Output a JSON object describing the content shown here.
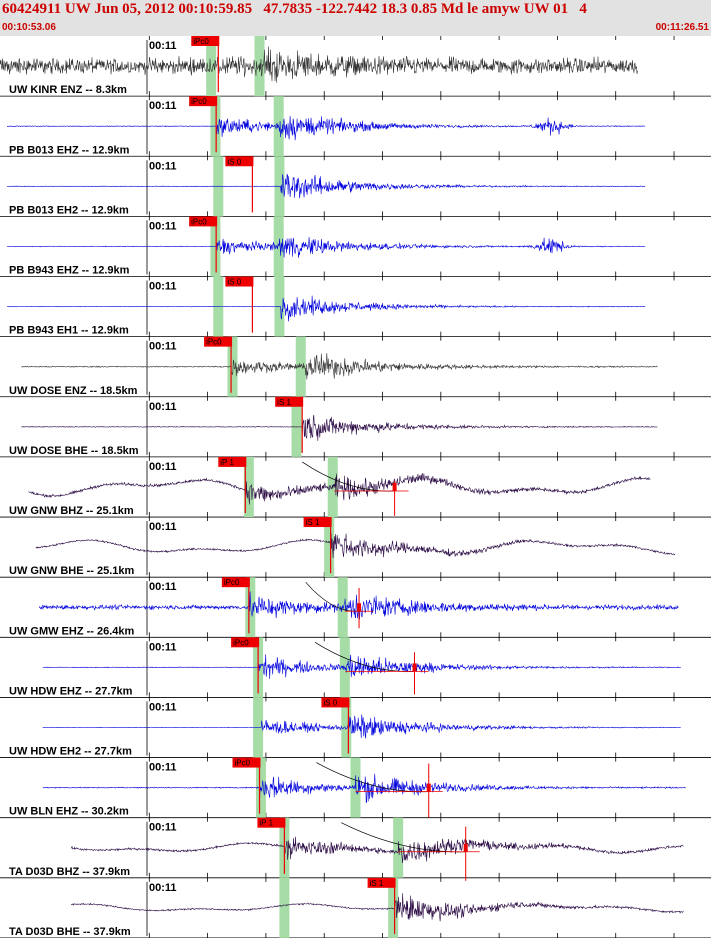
{
  "header": {
    "title": "60424911 UW Jun 05, 2012 00:10:59.85   47.7835 -122.7442 18.3 0.85 Md le amyw UW 01   4",
    "start_time": "00:10:53.06",
    "end_time": "00:11:26.51"
  },
  "colors": {
    "header_bg": "#e2e2e2",
    "header_text": "#cc0000",
    "pick": "#ee0000",
    "window": "#a6dca6",
    "trace_gray": "#333333",
    "trace_blue": "#0000dd",
    "trace_purple": "#2a0a44"
  },
  "traces": [
    {
      "label": "UW KINR ENZ -- 8.3km",
      "time_mark": "00:11",
      "color": "gray",
      "start": 0.0,
      "end": 0.897,
      "noise": 0.45,
      "amp": 0.5,
      "lp": 0,
      "p": 0.307,
      "s": 0.372,
      "windows": [
        0.297,
        0.365
      ],
      "pick_label": "iPc0",
      "pick_at": 0.307,
      "phase_sp": 0.4,
      "bursts": [],
      "amp_mark": null,
      "curve": false
    },
    {
      "label": "PB B013 EHZ -- 12.9km",
      "time_mark": "00:11",
      "color": "blue",
      "start": 0.01,
      "end": 0.908,
      "noise": 0.02,
      "amp": 0.7,
      "lp": 0,
      "p": 0.304,
      "s": 0.392,
      "windows": [
        0.303,
        0.392
      ],
      "pick_label": "iPc0",
      "pick_at": 0.304,
      "phase_sp": 0.85,
      "bursts": [
        [
          0.775,
          0.04,
          0.45
        ]
      ],
      "amp_mark": null,
      "curve": false
    },
    {
      "label": "PB B013 EH2 -- 12.9km",
      "time_mark": "00:11",
      "color": "blue",
      "start": 0.01,
      "end": 0.908,
      "noise": 0.015,
      "amp": 0.75,
      "lp": 0,
      "p": 0.395,
      "s": 0.395,
      "windows": [
        0.307,
        0.393
      ],
      "pick_label": "iS 0",
      "pick_at": 0.355,
      "phase_sp": 0.2,
      "bursts": [],
      "amp_mark": null,
      "curve": false
    },
    {
      "label": "PB B943 EHZ -- 12.9km",
      "time_mark": "00:11",
      "color": "blue",
      "start": 0.01,
      "end": 0.908,
      "noise": 0.02,
      "amp": 0.6,
      "lp": 0,
      "p": 0.304,
      "s": 0.392,
      "windows": [
        0.303,
        0.392
      ],
      "pick_label": "iPc0",
      "pick_at": 0.304,
      "phase_sp": 0.85,
      "bursts": [
        [
          0.775,
          0.04,
          0.45
        ]
      ],
      "amp_mark": null,
      "curve": false
    },
    {
      "label": "PB B943 EH1 -- 12.9km",
      "time_mark": "00:11",
      "color": "blue",
      "start": 0.01,
      "end": 0.908,
      "noise": 0.015,
      "amp": 0.6,
      "lp": 0,
      "p": 0.395,
      "s": 0.395,
      "windows": [
        0.307,
        0.393
      ],
      "pick_label": "iS 0",
      "pick_at": 0.355,
      "phase_sp": 0.25,
      "bursts": [],
      "amp_mark": null,
      "curve": false
    },
    {
      "label": "UW DOSE ENZ -- 18.5km",
      "time_mark": "00:11",
      "color": "gray",
      "start": 0.03,
      "end": 0.925,
      "noise": 0.03,
      "amp": 0.75,
      "lp": 0,
      "p": 0.325,
      "s": 0.43,
      "windows": [
        0.327,
        0.423
      ],
      "pick_label": "iPc0",
      "pick_at": 0.325,
      "phase_sp": 0.7,
      "bursts": [],
      "amp_mark": null,
      "curve": false
    },
    {
      "label": "UW DOSE BHE -- 18.5km",
      "time_mark": "00:11",
      "color": "purple",
      "start": 0.03,
      "end": 0.925,
      "noise": 0.02,
      "amp": 0.7,
      "lp": 0,
      "p": 0.425,
      "s": 0.425,
      "windows": [
        0.417
      ],
      "pick_label": "iS 1",
      "pick_at": 0.425,
      "phase_sp": 0.15,
      "bursts": [],
      "amp_mark": null,
      "curve": false
    },
    {
      "label": "UW GNW BHZ -- 25.1km",
      "time_mark": "00:11",
      "color": "purple",
      "start": 0.04,
      "end": 0.915,
      "noise": 0.08,
      "amp": 0.55,
      "lp": 0.22,
      "p": 0.345,
      "s": 0.47,
      "windows": [
        0.35,
        0.468
      ],
      "pick_label": "iP 1",
      "pick_at": 0.345,
      "phase_sp": 1.1,
      "bursts": [],
      "amp_mark": [
        0.555,
        0.4,
        0.68
      ],
      "curve": true
    },
    {
      "label": "UW GNW BHE -- 25.1km",
      "time_mark": "00:11",
      "color": "purple",
      "start": 0.05,
      "end": 0.95,
      "noise": 0.05,
      "amp": 0.55,
      "lp": 0.18,
      "p": 0.465,
      "s": 0.465,
      "windows": [
        0.463
      ],
      "pick_label": "iS 1",
      "pick_at": 0.465,
      "phase_sp": 0.55,
      "bursts": [],
      "amp_mark": null,
      "curve": false
    },
    {
      "label": "UW GMW EHZ -- 26.4km",
      "time_mark": "00:11",
      "color": "blue",
      "start": 0.055,
      "end": 0.955,
      "noise": 0.12,
      "amp": 0.7,
      "lp": 0,
      "p": 0.35,
      "s": 0.485,
      "windows": [
        0.352,
        0.482
      ],
      "pick_label": "iPc0",
      "pick_at": 0.35,
      "phase_sp": 1.0,
      "bursts": [],
      "amp_mark": [
        0.505,
        0.18,
        0.55
      ],
      "curve": true
    },
    {
      "label": "UW HDW EHZ -- 27.7km",
      "time_mark": "00:11",
      "color": "blue",
      "start": 0.06,
      "end": 0.958,
      "noise": 0.02,
      "amp": 0.7,
      "lp": 0,
      "p": 0.363,
      "s": 0.486,
      "windows": [
        0.363,
        0.485
      ],
      "pick_label": "iPc0",
      "pick_at": 0.363,
      "phase_sp": 1.0,
      "bursts": [],
      "amp_mark": [
        0.583,
        0.25,
        0.65
      ],
      "curve": true
    },
    {
      "label": "UW HDW EH2 -- 27.7km",
      "time_mark": "00:11",
      "color": "blue",
      "start": 0.06,
      "end": 0.958,
      "noise": 0.015,
      "amp": 0.7,
      "lp": 0,
      "p": 0.368,
      "s": 0.49,
      "windows": [
        0.363,
        0.487
      ],
      "pick_label": "iS 0",
      "pick_at": 0.49,
      "phase_sp": 0.75,
      "bursts": [],
      "amp_mark": null,
      "curve": false
    },
    {
      "label": "UW BLN EHZ -- 30.2km",
      "time_mark": "00:11",
      "color": "blue",
      "start": 0.06,
      "end": 0.965,
      "noise": 0.03,
      "amp": 0.75,
      "lp": 0,
      "p": 0.365,
      "s": 0.5,
      "windows": [
        0.367,
        0.5
      ],
      "pick_label": "iPc0",
      "pick_at": 0.365,
      "phase_sp": 1.0,
      "bursts": [],
      "amp_mark": [
        0.603,
        0.1,
        0.7
      ],
      "curve": true
    },
    {
      "label": "TA D03D BHZ -- 37.9km",
      "time_mark": "00:11",
      "color": "purple",
      "start": 0.1,
      "end": 0.962,
      "noise": 0.06,
      "amp": 0.7,
      "lp": 0.12,
      "p": 0.4,
      "s": 0.56,
      "windows": [
        0.4,
        0.56
      ],
      "pick_label": "iP 1",
      "pick_at": 0.4,
      "phase_sp": 0.9,
      "bursts": [],
      "amp_mark": [
        0.655,
        0.15,
        0.75
      ],
      "curve": true
    },
    {
      "label": "TA D03D BHE -- 37.9km",
      "time_mark": "00:11",
      "color": "purple",
      "start": 0.1,
      "end": 0.962,
      "noise": 0.04,
      "amp": 0.7,
      "lp": 0.1,
      "p": 0.555,
      "s": 0.555,
      "windows": [
        0.4,
        0.553
      ],
      "pick_label": "iS 1",
      "pick_at": 0.555,
      "phase_sp": 0.3,
      "bursts": [],
      "amp_mark": null,
      "curve": false
    }
  ]
}
